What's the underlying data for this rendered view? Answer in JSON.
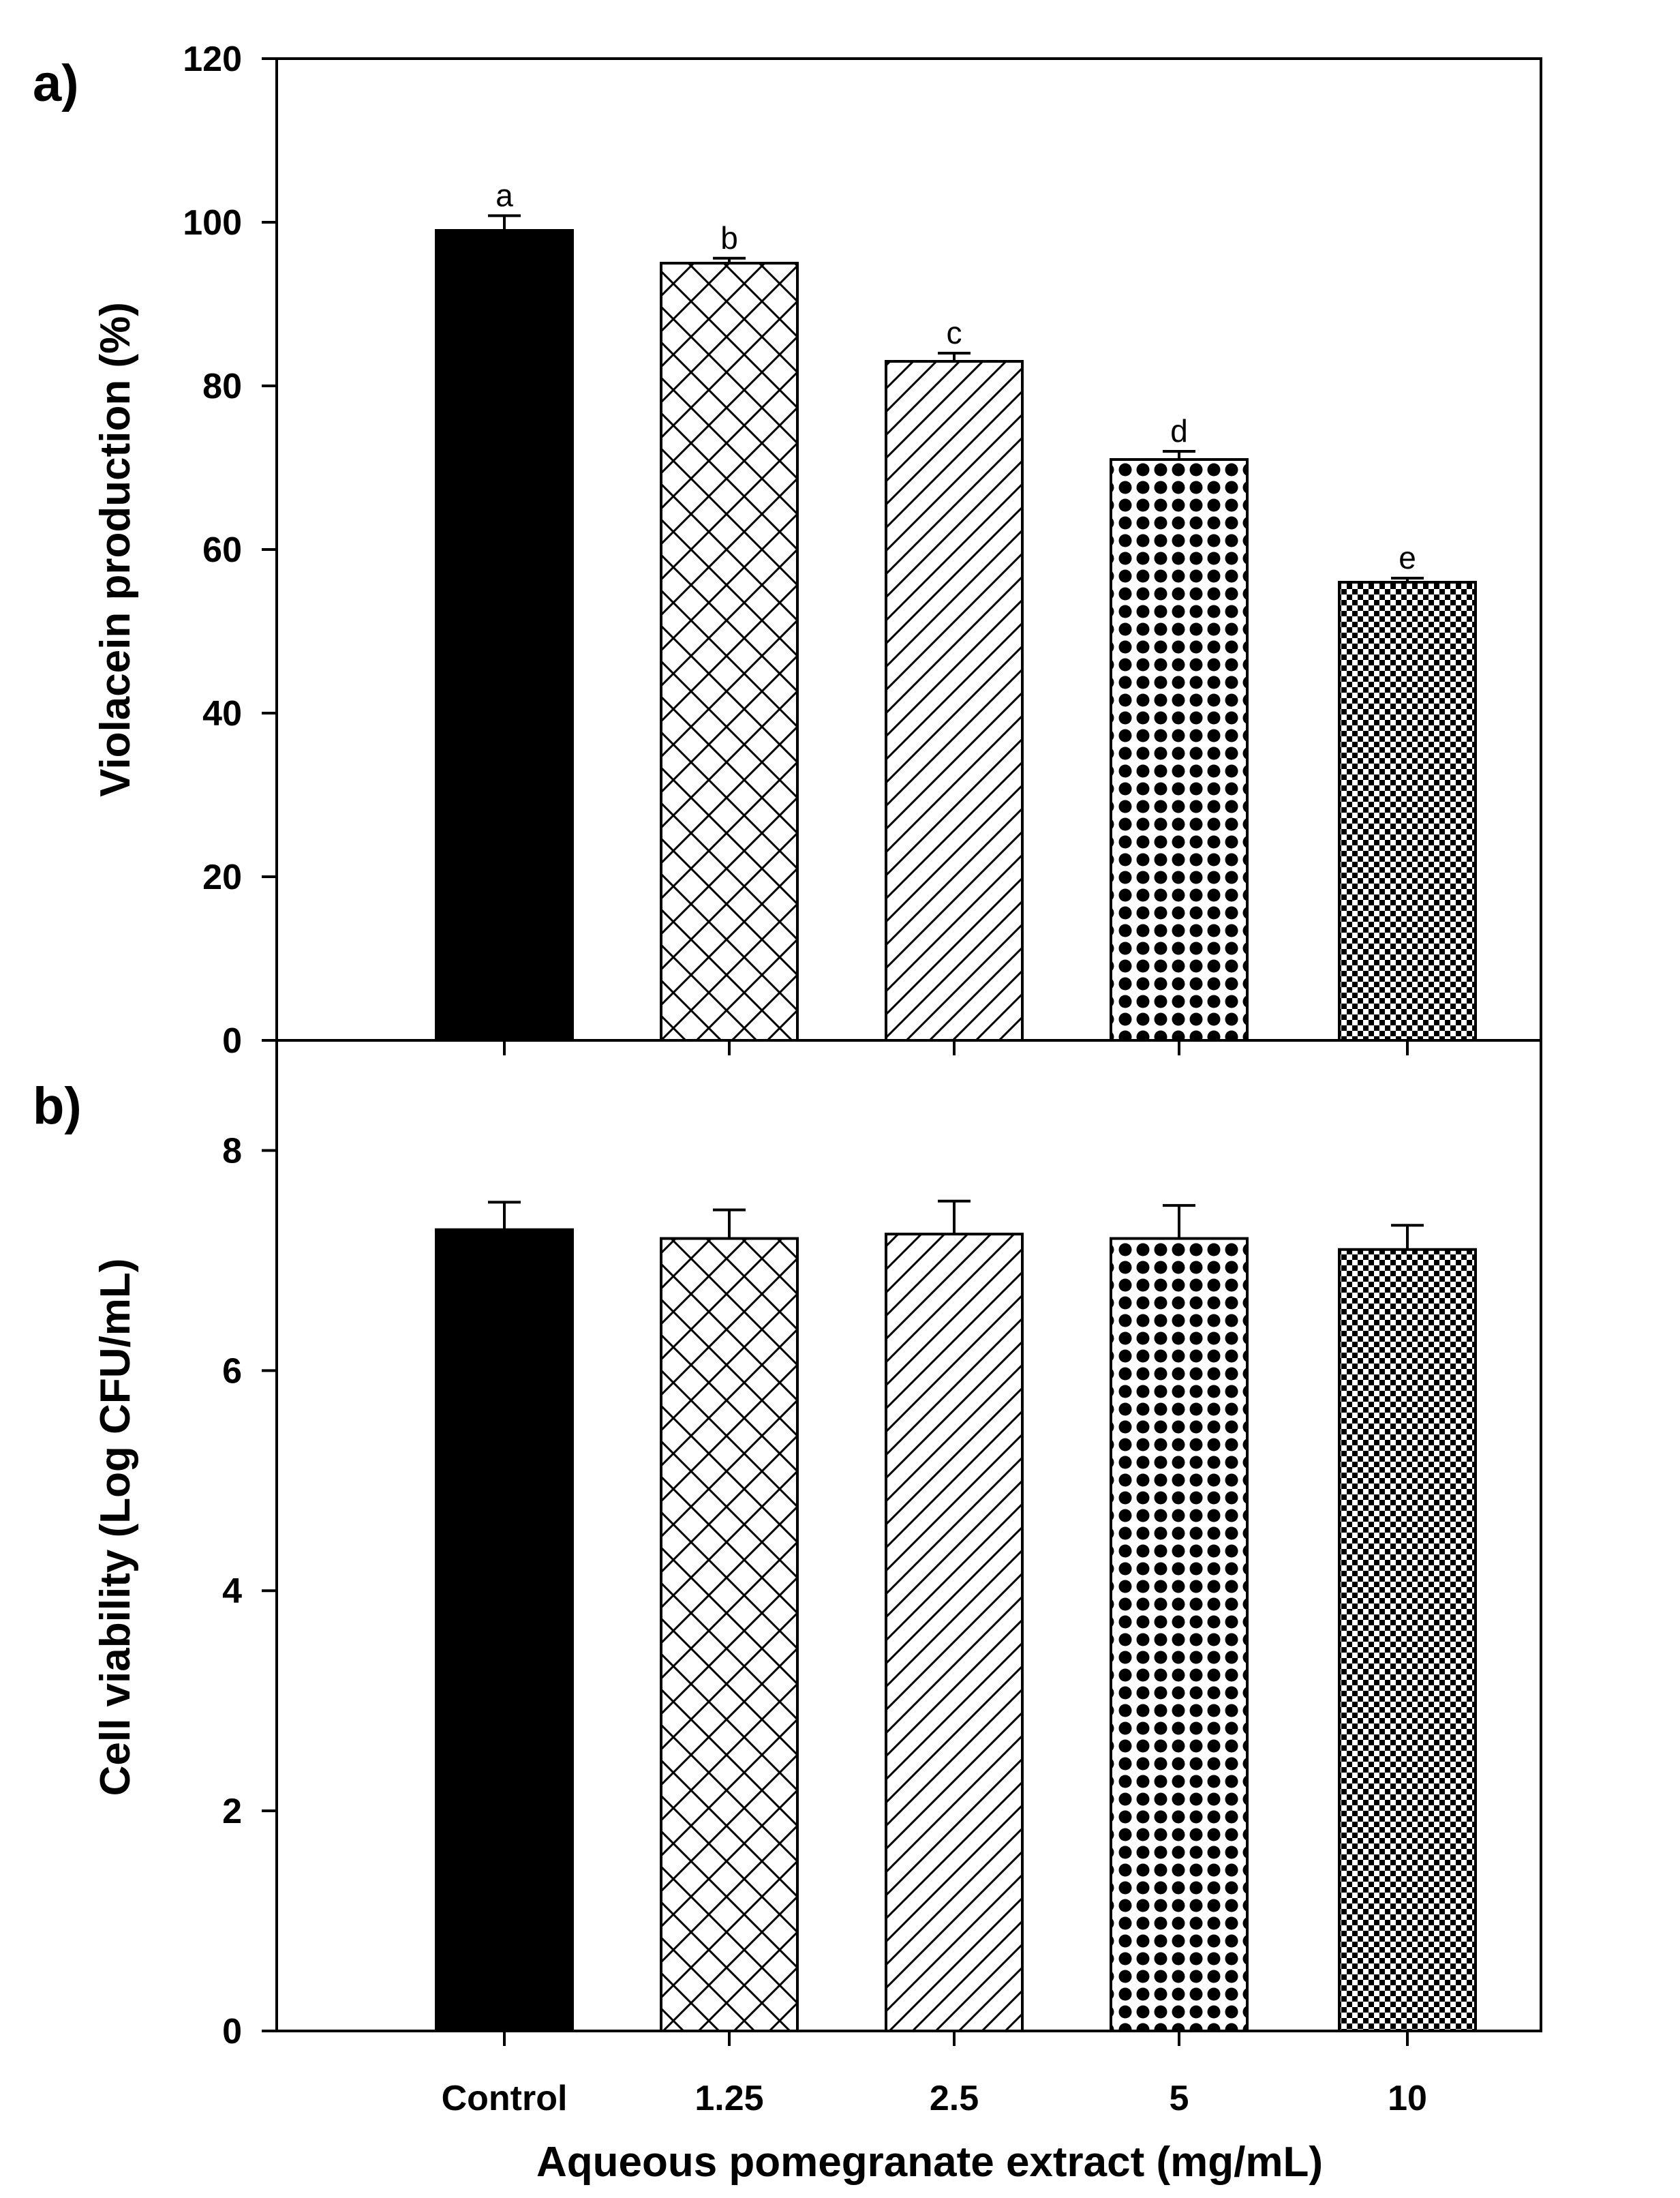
{
  "chart_data": [
    {
      "panel_label": "a)",
      "type": "bar",
      "categories": [
        "Control",
        "1.25",
        "2.5",
        "5",
        "10"
      ],
      "values": [
        99,
        95,
        83,
        71,
        56
      ],
      "errors": [
        1.8,
        0.6,
        1.0,
        1.0,
        0.5
      ],
      "significance_letters": [
        "a",
        "b",
        "c",
        "d",
        "e"
      ],
      "ylabel": "Violacein production (%)",
      "xlabel": "",
      "ylim": [
        0,
        120
      ],
      "yticks": [
        "0",
        "20",
        "40",
        "60",
        "80",
        "100",
        "120"
      ],
      "grid": false
    },
    {
      "panel_label": "b)",
      "type": "bar",
      "categories": [
        "Control",
        "1.25",
        "2.5",
        "5",
        "10"
      ],
      "values": [
        7.28,
        7.2,
        7.24,
        7.2,
        7.1
      ],
      "errors": [
        0.25,
        0.26,
        0.3,
        0.3,
        0.22
      ],
      "ylabel": "Cell viability (Log CFU/mL)",
      "xlabel": "Aqueous pomegranate extract (mg/mL)",
      "ylim": [
        0,
        9
      ],
      "yticks": [
        "0",
        "2",
        "4",
        "6",
        "8"
      ],
      "grid": false
    }
  ],
  "colors": {
    "bar_outline": "#000000",
    "control_fill": "#000000",
    "background": "#ffffff"
  }
}
